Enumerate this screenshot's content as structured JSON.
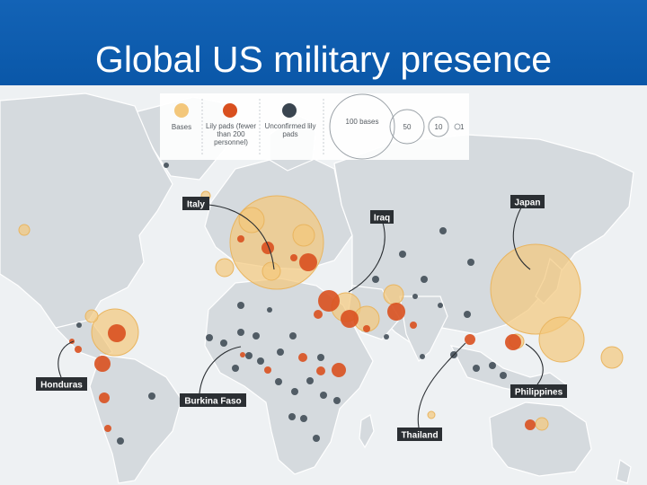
{
  "slide": {
    "title": "Global US military presence"
  },
  "legend": {
    "items": [
      {
        "label": "Bases",
        "color": "#f3c77b"
      },
      {
        "label": "Lily pads (fewer than 200 personnel)",
        "color": "#d9501f"
      },
      {
        "label": "Unconfirmed lily pads",
        "color": "#3a4550"
      }
    ],
    "size_labels": [
      "100 bases",
      "50",
      "10",
      "1"
    ]
  },
  "callouts": [
    {
      "label": "Italy"
    },
    {
      "label": "Iraq"
    },
    {
      "label": "Japan"
    },
    {
      "label": "Honduras"
    },
    {
      "label": "Burkina Faso"
    },
    {
      "label": "Philippines"
    },
    {
      "label": "Thailand"
    }
  ],
  "colors": {
    "header": "#0f5fb3",
    "land": "#d5dade",
    "ocean": "#eef1f3",
    "base": "#f3c77b",
    "lily_pad": "#d9501f",
    "unconfirmed": "#3a4550"
  }
}
